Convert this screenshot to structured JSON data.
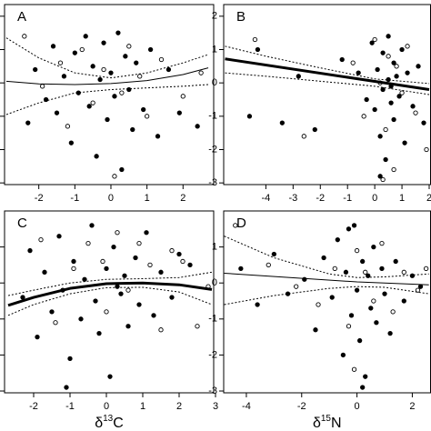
{
  "chart_data": [
    {
      "type": "scatter",
      "title": "A",
      "xlim": [
        -2.95,
        2.85
      ],
      "ylim": [
        -3.05,
        2.35
      ],
      "xticks": [
        -2,
        -1,
        0,
        1,
        2
      ],
      "yticks": [
        -3,
        -2,
        -1,
        0,
        1,
        2
      ],
      "series": [
        {
          "mode": "points",
          "marker": "filled",
          "color": "#000000",
          "x": [
            -2.3,
            -2.1,
            -1.8,
            -1.6,
            -1.5,
            -1.3,
            -1.1,
            -1.0,
            -0.9,
            -0.7,
            -0.6,
            -0.5,
            -0.4,
            -0.3,
            -0.2,
            -0.1,
            0.0,
            0.1,
            0.2,
            0.3,
            0.4,
            0.5,
            0.6,
            0.7,
            0.9,
            1.1,
            1.3,
            1.6,
            1.9,
            2.4
          ],
          "values": [
            -1.2,
            0.4,
            -0.5,
            1.1,
            -0.9,
            0.2,
            -1.8,
            0.9,
            -0.3,
            1.4,
            -0.7,
            0.5,
            -2.2,
            0.1,
            1.2,
            -1.1,
            0.3,
            -0.4,
            1.5,
            -2.6,
            0.8,
            -0.2,
            -1.4,
            0.6,
            -0.8,
            1.0,
            -1.6,
            0.4,
            -0.9,
            -1.3
          ]
        },
        {
          "mode": "points",
          "marker": "open",
          "color": "#000000",
          "x": [
            -2.4,
            -1.9,
            -1.4,
            -1.2,
            -0.8,
            -0.5,
            -0.2,
            0.1,
            0.3,
            0.5,
            0.8,
            1.0,
            1.4,
            2.0,
            2.5
          ],
          "values": [
            1.4,
            -0.1,
            0.6,
            -1.3,
            1.0,
            -0.6,
            0.4,
            -2.8,
            -0.3,
            1.1,
            0.2,
            -1.0,
            0.7,
            -0.4,
            0.3
          ]
        },
        {
          "mode": "line",
          "style": "solid",
          "width": 1,
          "color": "#000000",
          "x": [
            -2.9,
            -2,
            -1,
            0,
            1,
            2,
            2.7
          ],
          "values": [
            0.05,
            -0.03,
            -0.05,
            -0.02,
            0.07,
            0.25,
            0.45
          ]
        },
        {
          "mode": "line",
          "style": "dotted",
          "width": 1,
          "color": "#000000",
          "x": [
            -2.9,
            -2,
            -1,
            0,
            1,
            2,
            2.7
          ],
          "values": [
            1.35,
            0.75,
            0.3,
            0.15,
            0.3,
            0.6,
            0.85
          ]
        },
        {
          "mode": "line",
          "style": "dotted",
          "width": 1,
          "color": "#000000",
          "x": [
            -2.9,
            -2,
            -1,
            0,
            1,
            2,
            2.7
          ],
          "values": [
            -0.95,
            -0.6,
            -0.3,
            -0.2,
            -0.15,
            -0.1,
            -0.05
          ]
        }
      ]
    },
    {
      "type": "scatter",
      "title": "B",
      "xlim": [
        -5.55,
        2.05
      ],
      "ylim": [
        -3.05,
        2.35
      ],
      "xticks": [
        -4,
        -3,
        -2,
        -1,
        0,
        1,
        2
      ],
      "yticks": [
        -3,
        -2,
        -1,
        0,
        1,
        2
      ],
      "series": [
        {
          "mode": "points",
          "marker": "filled",
          "color": "#000000",
          "x": [
            -4.6,
            -4.3,
            -3.4,
            -2.8,
            -2.2,
            -1.2,
            -0.6,
            -0.3,
            -0.1,
            0.0,
            0.1,
            0.2,
            0.3,
            0.3,
            0.4,
            0.5,
            0.5,
            0.6,
            0.7,
            0.7,
            0.8,
            0.9,
            1.0,
            1.1,
            1.2,
            1.4,
            1.6,
            1.8,
            0.2,
            0.6
          ],
          "values": [
            -1.0,
            1.0,
            -1.2,
            0.2,
            -1.4,
            0.7,
            0.3,
            -0.5,
            1.2,
            -0.8,
            0.4,
            -1.6,
            0.9,
            -0.2,
            -2.3,
            0.1,
            1.4,
            -0.6,
            0.6,
            -1.1,
            0.2,
            -0.4,
            1.0,
            -1.8,
            0.3,
            -0.7,
            0.5,
            -1.2,
            -2.8,
            -0.1
          ]
        },
        {
          "mode": "points",
          "marker": "open",
          "color": "#000000",
          "x": [
            -4.4,
            -2.6,
            -0.8,
            -0.4,
            0.0,
            0.2,
            0.4,
            0.5,
            0.7,
            0.8,
            1.0,
            1.2,
            1.5,
            1.9,
            0.3
          ],
          "values": [
            1.3,
            -1.6,
            0.6,
            -1.0,
            1.3,
            0.0,
            -1.4,
            0.8,
            -2.6,
            0.5,
            -0.3,
            1.1,
            -0.9,
            -2.0,
            -2.9
          ]
        },
        {
          "mode": "line",
          "style": "solid",
          "width": 3,
          "color": "#000000",
          "x": [
            -5.5,
            2.0
          ],
          "values": [
            0.72,
            -0.2
          ]
        },
        {
          "mode": "line",
          "style": "dotted",
          "width": 1,
          "color": "#000000",
          "x": [
            -5.5,
            -4,
            -2,
            0,
            2.0
          ],
          "values": [
            1.1,
            0.8,
            0.45,
            0.12,
            -0.02
          ]
        },
        {
          "mode": "line",
          "style": "dotted",
          "width": 1,
          "color": "#000000",
          "x": [
            -5.5,
            -4,
            -2,
            0,
            2.0
          ],
          "values": [
            0.3,
            0.2,
            0.05,
            -0.1,
            -0.35
          ]
        }
      ]
    },
    {
      "type": "scatter",
      "title": "C",
      "xlabel": [
        "δ",
        "13",
        "C"
      ],
      "xlim": [
        -2.8,
        2.95
      ],
      "ylim": [
        -3.05,
        2.0
      ],
      "xticks": [
        -2,
        -1,
        0,
        1,
        2,
        3
      ],
      "yticks": [
        -3,
        -2,
        -1,
        0,
        1
      ],
      "series": [
        {
          "mode": "points",
          "marker": "filled",
          "color": "#000000",
          "x": [
            -2.3,
            -2.1,
            -1.9,
            -1.7,
            -1.5,
            -1.3,
            -1.2,
            -1.0,
            -0.9,
            -0.7,
            -0.6,
            -0.4,
            -0.3,
            -0.2,
            0.0,
            0.1,
            0.2,
            0.4,
            0.5,
            0.6,
            0.8,
            0.9,
            1.1,
            1.3,
            1.5,
            1.8,
            2.0,
            2.3,
            -1.1,
            0.3
          ],
          "values": [
            -0.4,
            0.9,
            -1.5,
            0.3,
            -0.8,
            1.3,
            -0.2,
            -2.1,
            0.6,
            -1.0,
            0.1,
            1.6,
            -0.5,
            -1.4,
            0.4,
            -2.6,
            1.0,
            -0.3,
            0.2,
            -1.2,
            0.7,
            -0.6,
            1.4,
            -0.9,
            0.3,
            -0.4,
            0.8,
            0.5,
            -2.9,
            -0.1
          ]
        },
        {
          "mode": "points",
          "marker": "open",
          "color": "#000000",
          "x": [
            -1.8,
            -1.4,
            -0.9,
            -0.5,
            -0.1,
            0.3,
            0.6,
            0.9,
            1.2,
            1.5,
            1.8,
            2.1,
            2.5,
            2.8,
            0.0
          ],
          "values": [
            1.2,
            -1.1,
            0.4,
            1.1,
            0.6,
            1.4,
            -0.2,
            1.1,
            0.5,
            -1.3,
            0.9,
            0.6,
            -1.2,
            -0.1,
            -0.8
          ]
        },
        {
          "mode": "line",
          "style": "solid",
          "width": 3,
          "color": "#000000",
          "x": [
            -2.7,
            -2,
            -1,
            0,
            1,
            2,
            2.9
          ],
          "values": [
            -0.62,
            -0.4,
            -0.15,
            -0.02,
            0.0,
            -0.05,
            -0.18
          ]
        },
        {
          "mode": "line",
          "style": "dotted",
          "width": 1,
          "color": "#000000",
          "x": [
            -2.7,
            -2,
            -1,
            0,
            1,
            2,
            2.9
          ],
          "values": [
            -0.35,
            -0.2,
            0.0,
            0.1,
            0.12,
            0.15,
            0.3
          ]
        },
        {
          "mode": "line",
          "style": "dotted",
          "width": 1,
          "color": "#000000",
          "x": [
            -2.7,
            -2,
            -1,
            0,
            1,
            2,
            2.9
          ],
          "values": [
            -0.9,
            -0.6,
            -0.3,
            -0.13,
            -0.12,
            -0.25,
            -0.6
          ]
        }
      ]
    },
    {
      "type": "scatter",
      "title": "D",
      "xlabel": [
        "δ",
        "15",
        "N"
      ],
      "xlim": [
        -4.82,
        2.66
      ],
      "ylim": [
        -3.05,
        2.0
      ],
      "xticks": [
        -4,
        -2,
        0,
        2
      ],
      "yticks": [
        -3,
        -2,
        -1,
        0,
        1
      ],
      "series": [
        {
          "mode": "points",
          "marker": "filled",
          "color": "#000000",
          "x": [
            -4.2,
            -3.6,
            -3.0,
            -2.5,
            -1.9,
            -1.5,
            -1.2,
            -0.9,
            -0.7,
            -0.5,
            -0.4,
            -0.2,
            -0.1,
            0.0,
            0.1,
            0.2,
            0.3,
            0.4,
            0.5,
            0.6,
            0.7,
            0.9,
            1.0,
            1.2,
            1.4,
            1.7,
            2.0,
            2.3,
            0.2,
            -0.3
          ],
          "values": [
            0.4,
            -0.6,
            0.8,
            -0.3,
            0.1,
            -1.3,
            0.7,
            -0.4,
            1.2,
            -2.0,
            0.3,
            -0.9,
            1.6,
            -0.2,
            -1.6,
            0.6,
            -2.6,
            0.2,
            -0.7,
            1.0,
            -1.1,
            0.4,
            -0.3,
            -1.4,
            0.6,
            -0.5,
            0.2,
            -0.1,
            -2.9,
            1.5
          ]
        },
        {
          "mode": "points",
          "marker": "open",
          "color": "#000000",
          "x": [
            -4.4,
            -3.2,
            -2.2,
            -1.4,
            -0.8,
            -0.3,
            0.0,
            0.3,
            0.6,
            0.9,
            1.3,
            1.7,
            2.2,
            2.5,
            -0.1
          ],
          "values": [
            1.6,
            0.5,
            -0.1,
            -0.6,
            0.4,
            -1.2,
            0.9,
            0.3,
            -0.5,
            1.1,
            -0.8,
            0.3,
            -0.2,
            0.4,
            -2.4
          ]
        },
        {
          "mode": "line",
          "style": "solid",
          "width": 1,
          "color": "#000000",
          "x": [
            -4.8,
            0,
            2.6
          ],
          "values": [
            0.27,
            0.03,
            -0.05
          ]
        },
        {
          "mode": "line",
          "style": "dotted",
          "width": 1,
          "color": "#000000",
          "x": [
            -4.8,
            -3,
            -1,
            0,
            1,
            2.6
          ],
          "values": [
            1.3,
            0.7,
            0.25,
            0.15,
            0.17,
            0.25
          ]
        },
        {
          "mode": "line",
          "style": "dotted",
          "width": 1,
          "color": "#000000",
          "x": [
            -4.8,
            -3,
            -1,
            0,
            1,
            2.6
          ],
          "values": [
            -0.6,
            -0.35,
            -0.15,
            -0.1,
            -0.12,
            -0.3
          ]
        }
      ]
    }
  ]
}
